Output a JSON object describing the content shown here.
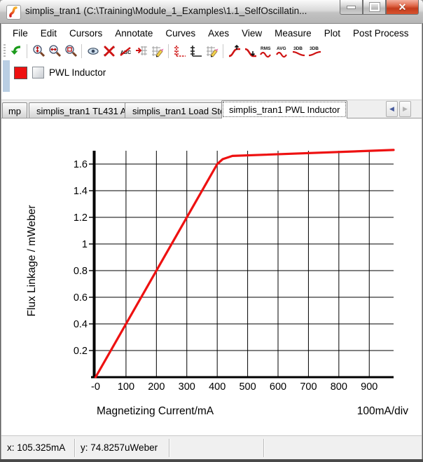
{
  "window": {
    "title": "simplis_tran1 (C:\\Training\\Module_1_Examples\\1.1_SelfOscillatin...",
    "controls": {
      "minimize": "minimize",
      "maximize": "maximize",
      "close": "close"
    }
  },
  "menu": {
    "items": [
      "File",
      "Edit",
      "Cursors",
      "Annotate",
      "Curves",
      "Axes",
      "View",
      "Measure",
      "Plot",
      "Post Process"
    ]
  },
  "toolbar": {
    "icon_names": [
      "undo-icon",
      "zoom-y-icon",
      "zoom-x-icon",
      "zoom-box-icon",
      "show-curve-icon",
      "delete-curve-icon",
      "delete-text-icon",
      "move-curve-icon",
      "edit-grid-icon",
      "stack-curves-icon",
      "separate-curves-icon",
      "edit-axis-icon",
      "rising-edge-icon",
      "falling-edge-icon",
      "rms-icon",
      "avg-icon",
      "3db-low-icon",
      "3db-high-icon"
    ],
    "icon_texts": {
      "abc": "ABC",
      "rms": "RMS",
      "avg": "AVG",
      "db3a": "3DB",
      "db3b": "3DB"
    }
  },
  "legend": {
    "label": "PWL Inductor",
    "swatch_color": "#ee1111",
    "checked": false
  },
  "tabs": {
    "items": [
      {
        "label": "mp",
        "active": false
      },
      {
        "label": "simplis_tran1 TL431 A",
        "active": false
      },
      {
        "label": "simplis_tran1 Load Step",
        "active": false
      },
      {
        "label": "simplis_tran1 PWL Inductor",
        "active": true
      }
    ]
  },
  "chart_data": {
    "type": "line",
    "title": "",
    "xlabel": "Magnetizing Current/mA",
    "ylabel": "Flux Linkage / mWeber",
    "x_div_label": "100mA/div",
    "xlim": [
      0,
      980
    ],
    "ylim": [
      0,
      1.7
    ],
    "grid": true,
    "x_ticks": [
      {
        "value": 0,
        "label": "-0"
      },
      {
        "value": 100,
        "label": "100"
      },
      {
        "value": 200,
        "label": "200"
      },
      {
        "value": 300,
        "label": "300"
      },
      {
        "value": 400,
        "label": "400"
      },
      {
        "value": 500,
        "label": "500"
      },
      {
        "value": 600,
        "label": "600"
      },
      {
        "value": 700,
        "label": "700"
      },
      {
        "value": 800,
        "label": "800"
      },
      {
        "value": 900,
        "label": "900"
      }
    ],
    "y_ticks": [
      {
        "value": 0.2,
        "label": "0.2"
      },
      {
        "value": 0.4,
        "label": "0.4"
      },
      {
        "value": 0.6,
        "label": "0.6"
      },
      {
        "value": 0.8,
        "label": "0.8"
      },
      {
        "value": 1.0,
        "label": "1"
      },
      {
        "value": 1.2,
        "label": "1.2"
      },
      {
        "value": 1.4,
        "label": "1.4"
      },
      {
        "value": 1.6,
        "label": "1.6"
      }
    ],
    "series": [
      {
        "name": "PWL Inductor",
        "color": "#ee1111",
        "points": [
          [
            0,
            0
          ],
          [
            400,
            1.6
          ],
          [
            418,
            1.637
          ],
          [
            450,
            1.661
          ],
          [
            980,
            1.706
          ]
        ]
      }
    ]
  },
  "status": {
    "x_readout": "x: 105.325mA",
    "y_readout": "y: 74.8257uWeber"
  }
}
